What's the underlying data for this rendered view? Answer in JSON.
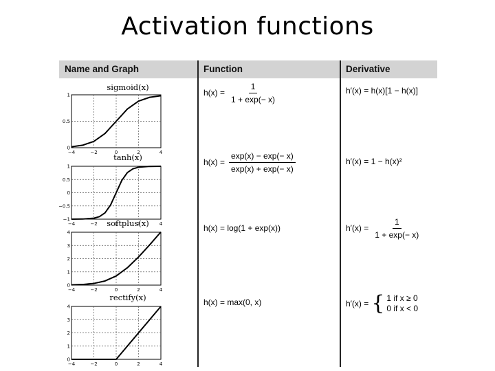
{
  "slide": {
    "title": "Activation functions"
  },
  "table": {
    "headers": [
      "Name and Graph",
      "Function",
      "Derivative"
    ],
    "rows": [
      {
        "graph_title": "sigmoid(x)",
        "function_lhs": "h(x) =",
        "function_num": "1",
        "function_den": "1 + exp(− x)",
        "derivative_text": "h′(x) = h(x)[1 − h(x)]",
        "chart_data": {
          "type": "line",
          "title": "sigmoid(x)",
          "xlim": [
            -4,
            4
          ],
          "ylim": [
            0,
            1
          ],
          "x_ticks": [
            "−4",
            "−2",
            "0",
            "2",
            "4"
          ],
          "y_ticks": [
            "1",
            "0.5",
            "0"
          ],
          "series": [
            {
              "x": [
                -4,
                -3,
                -2,
                -1,
                0,
                1,
                2,
                3,
                4
              ],
              "y": [
                0.018,
                0.047,
                0.119,
                0.269,
                0.5,
                0.731,
                0.881,
                0.953,
                0.982
              ]
            }
          ]
        }
      },
      {
        "graph_title": "tanh(x)",
        "function_lhs": "h(x) =",
        "function_num": "exp(x) − exp(− x)",
        "function_den": "exp(x) + exp(− x)",
        "derivative_text": "h′(x) = 1 − h(x)²",
        "chart_data": {
          "type": "line",
          "title": "tanh(x)",
          "xlim": [
            -4,
            4
          ],
          "ylim": [
            -1,
            1
          ],
          "x_ticks": [
            "−4",
            "−2",
            "0",
            "2",
            "4"
          ],
          "y_ticks": [
            "1",
            "0.5",
            "0",
            "−0.5",
            "−1"
          ],
          "series": [
            {
              "x": [
                -4,
                -3,
                -2,
                -1.5,
                -1,
                -0.5,
                0,
                0.5,
                1,
                1.5,
                2,
                3,
                4
              ],
              "y": [
                -0.999,
                -0.995,
                -0.964,
                -0.905,
                -0.762,
                -0.462,
                0,
                0.462,
                0.762,
                0.905,
                0.964,
                0.995,
                0.999
              ]
            }
          ]
        }
      },
      {
        "graph_title": "softplus(x)",
        "function_lhs": "h(x) = log(1 + exp(x))",
        "derivative_lhs": "h′(x) =",
        "derivative_num": "1",
        "derivative_den": "1 + exp(− x)",
        "chart_data": {
          "type": "line",
          "title": "softplus(x)",
          "xlim": [
            -4,
            4
          ],
          "ylim": [
            0,
            4
          ],
          "x_ticks": [
            "−4",
            "−2",
            "0",
            "2",
            "4"
          ],
          "y_ticks": [
            "4",
            "3",
            "2",
            "1",
            "0"
          ],
          "series": [
            {
              "x": [
                -4,
                -3,
                -2,
                -1,
                0,
                1,
                2,
                3,
                4
              ],
              "y": [
                0.018,
                0.049,
                0.127,
                0.313,
                0.693,
                1.313,
                2.127,
                3.049,
                4.018
              ]
            }
          ]
        }
      },
      {
        "graph_title": "rectify(x)",
        "function_lhs": "h(x) = max(0, x)",
        "derivative_lhs": "h′(x) =",
        "derivative_case1": "1 if x ≥ 0",
        "derivative_case2": "0 if x < 0",
        "chart_data": {
          "type": "line",
          "title": "rectify(x)",
          "xlim": [
            -4,
            4
          ],
          "ylim": [
            0,
            4
          ],
          "x_ticks": [
            "−4",
            "−2",
            "0",
            "2",
            "4"
          ],
          "y_ticks": [
            "4",
            "3",
            "2",
            "1",
            "0"
          ],
          "series": [
            {
              "x": [
                -4,
                0,
                4
              ],
              "y": [
                0,
                0,
                4
              ]
            }
          ]
        }
      }
    ]
  }
}
